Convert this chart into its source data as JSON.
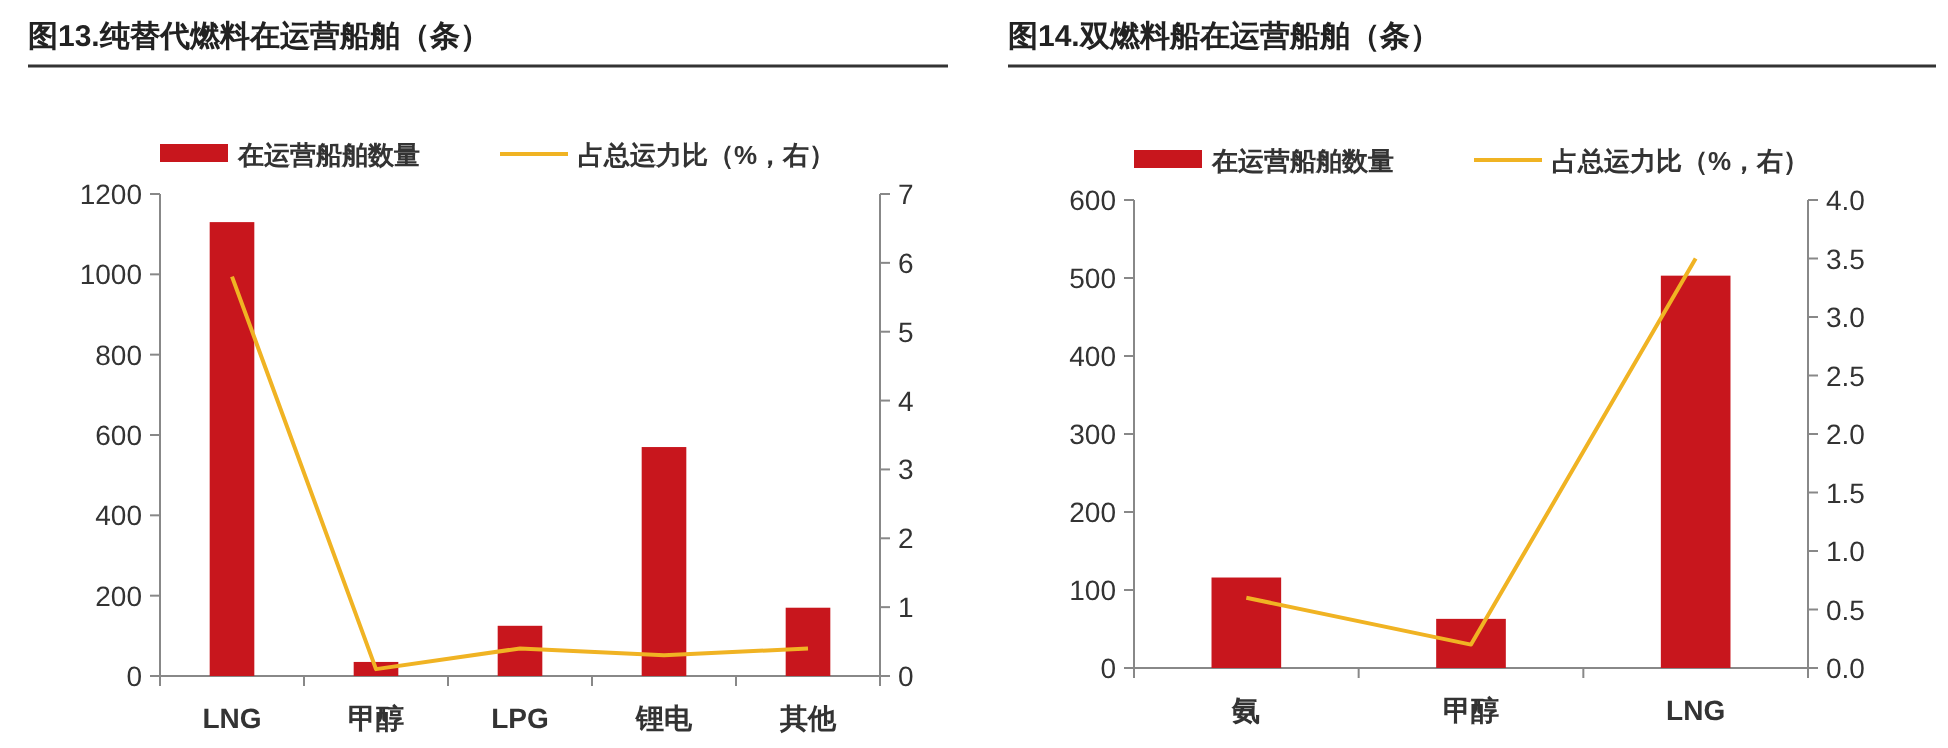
{
  "chart_data": [
    {
      "type": "bar",
      "title": "图13.纯替代燃料在运营船舶（条）",
      "categories": [
        "LNG",
        "甲醇",
        "LPG",
        "锂电",
        "其他"
      ],
      "legend": "top",
      "grid": false,
      "series": [
        {
          "name": "在运营船舶数量",
          "color": "#c8161d",
          "values": [
            1130,
            35,
            125,
            570,
            170
          ]
        },
        {
          "name": "占总运力比（%，右）",
          "type": "line",
          "axis": "y2",
          "color": "#f0b323",
          "values": [
            5.8,
            0.1,
            0.4,
            0.3,
            0.4
          ]
        }
      ],
      "ylim": [
        0,
        1200
      ],
      "yticks": [
        0,
        200,
        400,
        600,
        800,
        1000,
        1200
      ],
      "y2lim": [
        0,
        7
      ],
      "y2ticks": [
        0,
        1,
        2,
        3,
        4,
        5,
        6,
        7
      ]
    },
    {
      "type": "bar",
      "title": "图14.双燃料船在运营船舶（条）",
      "categories": [
        "氨",
        "甲醇",
        "LNG"
      ],
      "legend": "top",
      "grid": false,
      "series": [
        {
          "name": "在运营船舶数量",
          "color": "#c8161d",
          "values": [
            116,
            63,
            503
          ]
        },
        {
          "name": "占总运力比（%，右）",
          "type": "line",
          "axis": "y2",
          "color": "#f0b323",
          "values": [
            0.6,
            0.2,
            3.5
          ]
        }
      ],
      "ylim": [
        0,
        600
      ],
      "yticks": [
        0,
        100,
        200,
        300,
        400,
        500,
        600
      ],
      "y2lim": [
        0,
        4
      ],
      "y2ticks": [
        {
          "value": 0,
          "label": "0.0"
        },
        {
          "value": 0.5,
          "label": "0.5"
        },
        {
          "value": 1,
          "label": "1.0"
        },
        {
          "value": 1.5,
          "label": "1.5"
        },
        {
          "value": 2,
          "label": "2.0"
        },
        {
          "value": 2.5,
          "label": "2.5"
        },
        {
          "value": 3,
          "label": "3.0"
        },
        {
          "value": 3.5,
          "label": "3.5"
        },
        {
          "value": 4,
          "label": "4.0"
        }
      ]
    }
  ]
}
